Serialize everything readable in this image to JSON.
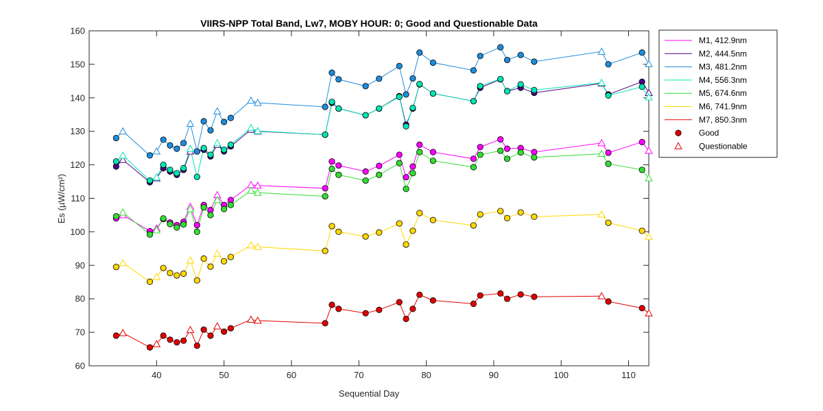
{
  "chart_data": {
    "type": "line",
    "title": "VIIRS-NPP Total Band,  Lw7, MOBY HOUR: 0;  Good and Questionable Data",
    "xlabel": "Sequential Day",
    "ylabel": "Es (µW/cm²)",
    "xlim": [
      30,
      113
    ],
    "ylim": [
      60,
      160
    ],
    "xticks": [
      40,
      50,
      60,
      70,
      80,
      90,
      100,
      110
    ],
    "yticks": [
      60,
      70,
      80,
      90,
      100,
      110,
      120,
      130,
      140,
      150,
      160
    ],
    "x": [
      34,
      35,
      39,
      40,
      41,
      42,
      43,
      44,
      45,
      46,
      47,
      48,
      49,
      50,
      51,
      54,
      55,
      65,
      66,
      67,
      71,
      73,
      76,
      77,
      78,
      79,
      81,
      87,
      88,
      91,
      92,
      94,
      96,
      106,
      107,
      112,
      113
    ],
    "quality": [
      "G",
      "Q",
      "G",
      "Q",
      "G",
      "G",
      "G",
      "G",
      "Q",
      "G",
      "G",
      "G",
      "Q",
      "G",
      "G",
      "Q",
      "Q",
      "G",
      "G",
      "G",
      "G",
      "G",
      "G",
      "G",
      "G",
      "G",
      "G",
      "G",
      "G",
      "G",
      "G",
      "G",
      "G",
      "Q",
      "G",
      "G",
      "Q"
    ],
    "series": [
      {
        "name": "M1, 412.9nm",
        "color": "#ff00ff",
        "values": [
          104.0,
          105.0,
          100.2,
          101.0,
          103.8,
          102.8,
          102.0,
          103.0,
          107.5,
          102.0,
          108.0,
          106.5,
          111.0,
          108.0,
          109.5,
          114.0,
          113.8,
          113.0,
          121.0,
          119.8,
          118.0,
          119.7,
          123.0,
          116.3,
          119.5,
          126.0,
          123.8,
          121.8,
          125.3,
          127.6,
          124.8,
          125.0,
          123.8,
          126.5,
          123.6,
          126.8,
          124.2
        ]
      },
      {
        "name": "M2, 444.5nm",
        "color": "#4b0082",
        "values": [
          119.5,
          121.5,
          114.8,
          116.0,
          119.0,
          118.0,
          117.0,
          118.5,
          124.0,
          124.0,
          124.5,
          122.5,
          126.0,
          124.0,
          125.5,
          130.5,
          130.0,
          129.0,
          138.5,
          136.8,
          134.8,
          136.8,
          140.5,
          132.0,
          136.8,
          144.0,
          141.3,
          139.0,
          143.0,
          145.5,
          142.0,
          143.0,
          141.5,
          144.3,
          141.0,
          144.8,
          141.5
        ]
      },
      {
        "name": "M3, 481.2nm",
        "color": "#1e8cdc",
        "values": [
          128.0,
          130.0,
          122.8,
          124.0,
          127.5,
          125.8,
          124.8,
          126.5,
          132.3,
          124.0,
          133.0,
          130.3,
          136.0,
          132.8,
          134.0,
          139.2,
          138.5,
          137.3,
          147.5,
          145.5,
          143.5,
          145.7,
          149.5,
          141.0,
          145.8,
          153.5,
          150.5,
          148.2,
          152.5,
          155.1,
          151.3,
          152.8,
          150.8,
          153.8,
          150.0,
          153.5,
          150.1
        ]
      },
      {
        "name": "M4, 556.3nm",
        "color": "#00e6b4",
        "values": [
          121.0,
          122.8,
          115.3,
          116.3,
          120.0,
          118.5,
          117.5,
          119.0,
          124.8,
          116.4,
          125.0,
          123.0,
          126.5,
          124.5,
          126.0,
          131.0,
          130.1,
          129.0,
          138.8,
          136.8,
          134.8,
          136.8,
          140.3,
          131.5,
          137.0,
          144.1,
          141.3,
          139.0,
          143.5,
          145.6,
          142.0,
          144.0,
          142.3,
          144.5,
          140.7,
          143.3,
          140.2
        ]
      },
      {
        "name": "M5, 674.6nm",
        "color": "#33dd33",
        "values": [
          104.6,
          105.8,
          99.2,
          100.5,
          104.0,
          102.3,
          101.3,
          102.2,
          106.8,
          100.0,
          107.3,
          105.0,
          109.5,
          106.8,
          108.0,
          112.3,
          111.7,
          110.6,
          118.8,
          117.0,
          115.3,
          117.0,
          120.5,
          112.8,
          117.5,
          123.8,
          121.2,
          119.3,
          123.0,
          124.2,
          121.8,
          123.7,
          122.2,
          123.3,
          120.3,
          118.5,
          116.0
        ]
      },
      {
        "name": "M6, 741.9nm",
        "color": "#ffd700",
        "values": [
          89.5,
          90.7,
          85.1,
          86.5,
          89.2,
          87.7,
          87.0,
          87.5,
          91.5,
          85.5,
          92.0,
          89.6,
          93.5,
          91.2,
          92.5,
          96.0,
          95.5,
          94.3,
          101.7,
          100.0,
          98.6,
          99.8,
          102.5,
          96.2,
          100.3,
          105.6,
          103.5,
          101.9,
          105.2,
          106.2,
          104.1,
          105.8,
          104.5,
          105.2,
          102.7,
          100.3,
          98.5
        ]
      },
      {
        "name": "M7, 850.3nm",
        "color": "#e00000",
        "values": [
          69.0,
          69.8,
          65.5,
          66.5,
          69.0,
          67.8,
          67.0,
          67.5,
          70.7,
          66.0,
          70.8,
          69.0,
          71.8,
          70.2,
          71.2,
          73.8,
          73.5,
          72.7,
          78.2,
          77.0,
          75.7,
          76.7,
          79.0,
          74.0,
          77.0,
          81.2,
          79.5,
          78.5,
          81.0,
          81.6,
          80.0,
          81.3,
          80.6,
          80.8,
          79.2,
          77.2,
          75.7
        ]
      }
    ],
    "legend": {
      "placement": "outside-right-top",
      "markers": [
        {
          "label": "Good",
          "marker": "circle",
          "color": "#e00000"
        },
        {
          "label": "Questionable",
          "marker": "triangle",
          "color": "#e00000"
        }
      ]
    },
    "grid": false
  }
}
